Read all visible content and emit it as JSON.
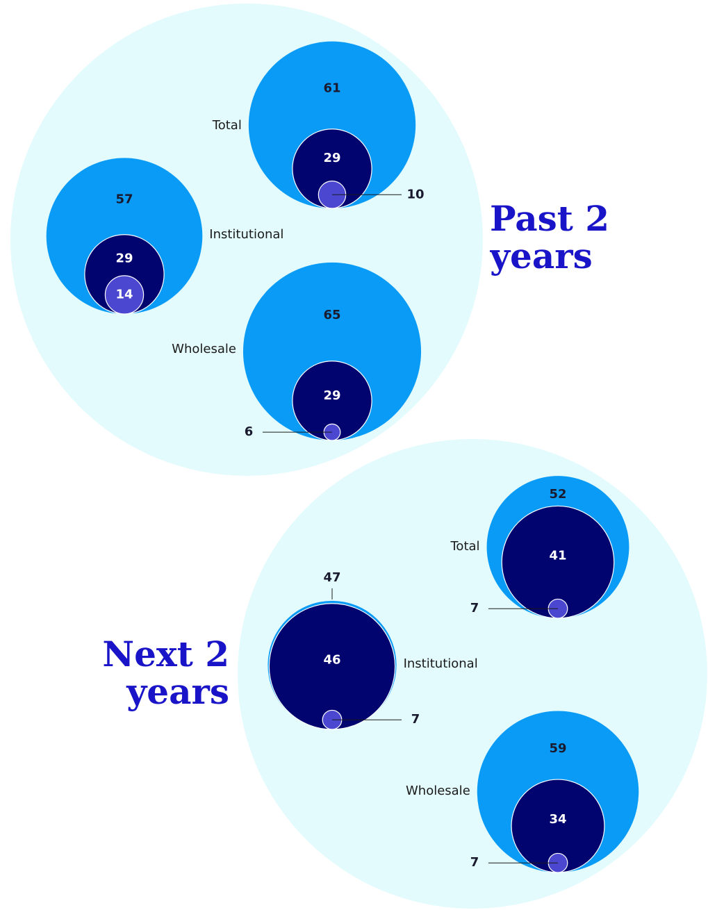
{
  "chart_data": [
    {
      "type": "nested-bubble",
      "title": "Past 2 years",
      "categories": [
        "Total",
        "Institutional",
        "Wholesale"
      ],
      "series": [
        {
          "color": "#0a9bf7",
          "values": [
            61,
            57,
            65
          ]
        },
        {
          "color": "#01036f",
          "values": [
            29,
            29,
            29
          ]
        },
        {
          "color": "#4b47d1",
          "values": [
            10,
            14,
            6
          ]
        }
      ]
    },
    {
      "type": "nested-bubble",
      "title": "Next 2 years",
      "categories": [
        "Total",
        "Institutional",
        "Wholesale"
      ],
      "series": [
        {
          "color": "#0a9bf7",
          "values": [
            52,
            47,
            59
          ]
        },
        {
          "color": "#01036f",
          "values": [
            41,
            46,
            34
          ]
        },
        {
          "color": "#4b47d1",
          "values": [
            7,
            7,
            7
          ]
        }
      ]
    }
  ]
}
